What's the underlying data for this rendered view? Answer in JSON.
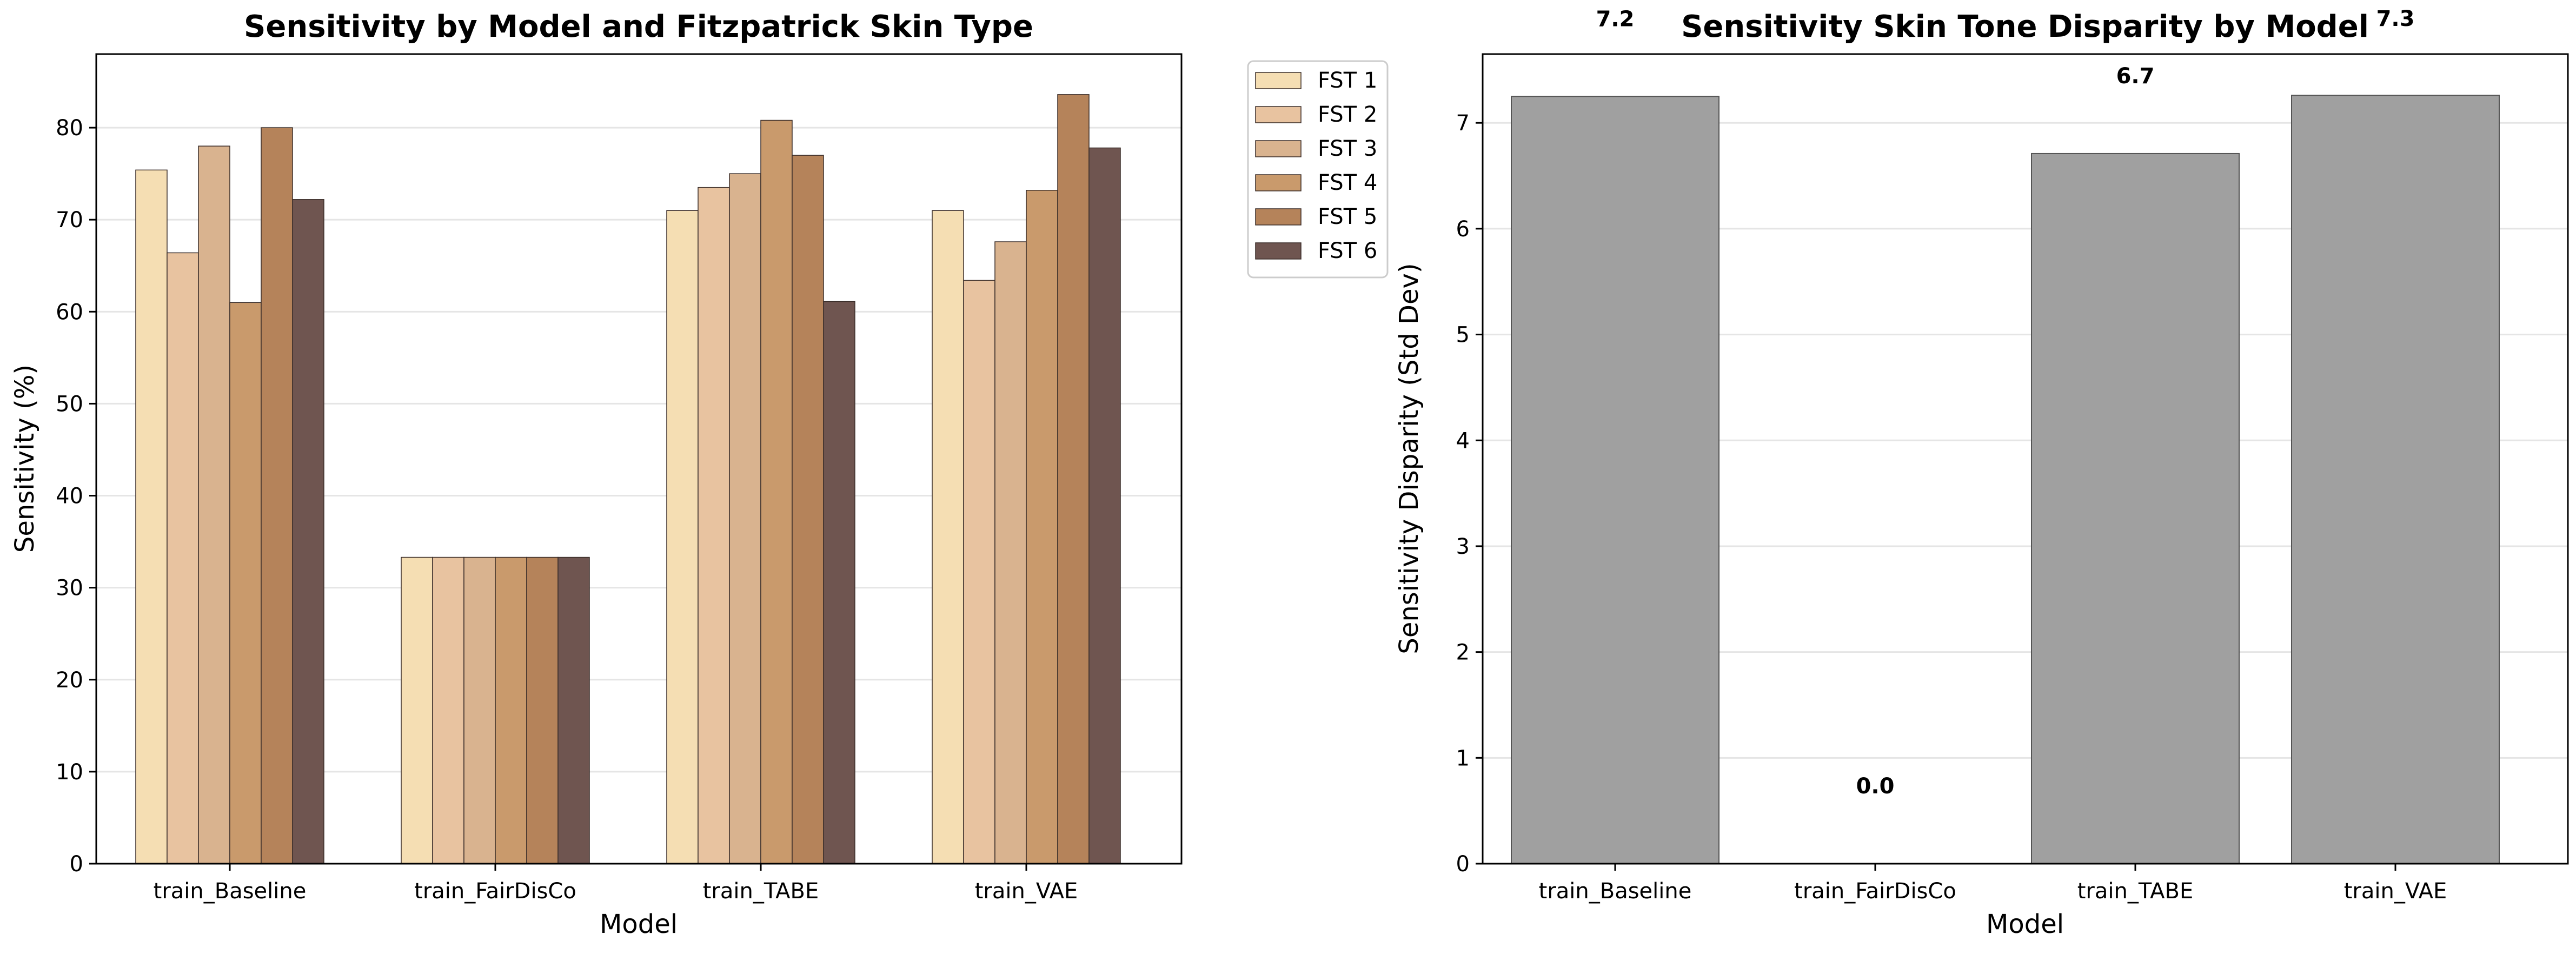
{
  "chart_data": [
    {
      "type": "bar",
      "title": "Sensitivity by Model and Fitzpatrick Skin Type",
      "xlabel": "Model",
      "ylabel": "Sensitivity (%)",
      "ylim": [
        0,
        88
      ],
      "yticks": [
        0,
        10,
        20,
        30,
        40,
        50,
        60,
        70,
        80
      ],
      "grid": "horizontal",
      "legend": "upper-right-outside",
      "categories": [
        "train_Baseline",
        "train_FairDisCo",
        "train_TABE",
        "train_VAE"
      ],
      "series": [
        {
          "name": "FST 1",
          "color": "#f5deb3",
          "values": [
            75.4,
            33.3,
            71.0,
            71.0
          ]
        },
        {
          "name": "FST 2",
          "color": "#e8c3a0",
          "values": [
            66.4,
            33.3,
            73.5,
            63.4
          ]
        },
        {
          "name": "FST 3",
          "color": "#d9b38f",
          "values": [
            78.0,
            33.3,
            75.0,
            67.6
          ]
        },
        {
          "name": "FST 4",
          "color": "#c99a6c",
          "values": [
            61.0,
            33.3,
            80.8,
            73.2
          ]
        },
        {
          "name": "FST 5",
          "color": "#b5835a",
          "values": [
            80.0,
            33.3,
            77.0,
            83.6
          ]
        },
        {
          "name": "FST 6",
          "color": "#6f5550",
          "values": [
            72.2,
            33.3,
            61.1,
            77.8
          ]
        }
      ]
    },
    {
      "type": "bar",
      "title": "Sensitivity Skin Tone Disparity by Model",
      "xlabel": "Model",
      "ylabel": "Sensitivity Disparity (Std Dev)",
      "ylim": [
        0,
        7.65
      ],
      "yticks": [
        0,
        1,
        2,
        3,
        4,
        5,
        6,
        7
      ],
      "grid": "horizontal",
      "categories": [
        "train_Baseline",
        "train_FairDisCo",
        "train_TABE",
        "train_VAE"
      ],
      "values": [
        7.25,
        0.0,
        6.71,
        7.26
      ],
      "bar_color": "#a0a0a0",
      "value_labels": [
        "7.2",
        "0.0",
        "6.7",
        "7.3"
      ]
    }
  ]
}
